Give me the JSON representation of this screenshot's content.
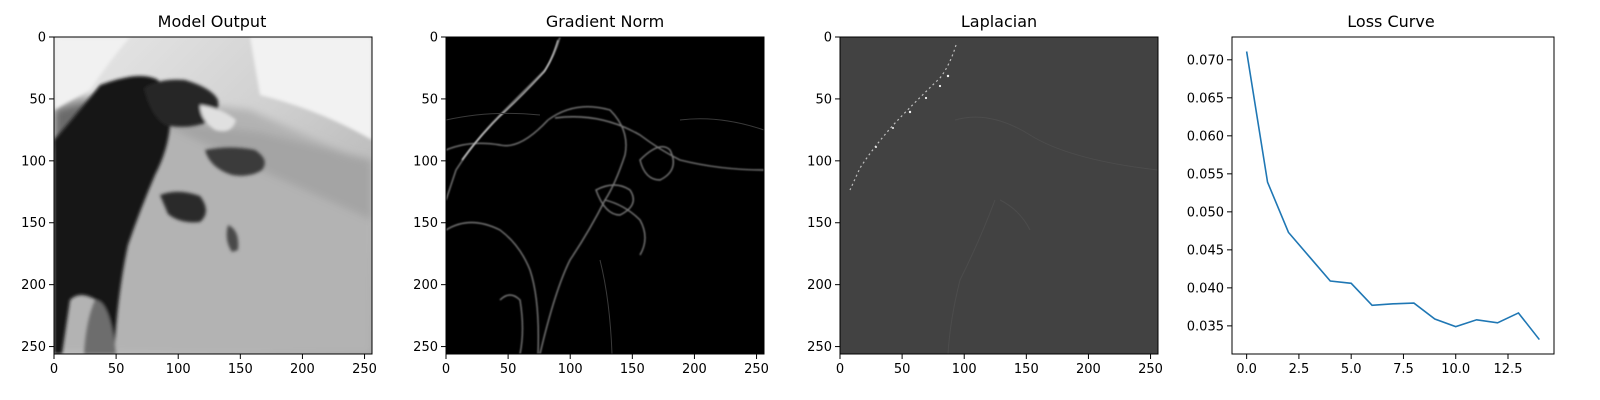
{
  "chart_data": [
    {
      "type": "heatmap",
      "title": "Model Output",
      "colormap": "gray",
      "background": "#bdbdbd",
      "xlim": [
        0,
        256
      ],
      "ylim": [
        256,
        0
      ],
      "xticks": [
        0,
        50,
        100,
        150,
        200,
        250
      ],
      "yticks": [
        0,
        50,
        100,
        150,
        200,
        250
      ]
    },
    {
      "type": "heatmap",
      "title": "Gradient Norm",
      "colormap": "gray",
      "background": "#000000",
      "xlim": [
        0,
        256
      ],
      "ylim": [
        256,
        0
      ],
      "xticks": [
        0,
        50,
        100,
        150,
        200,
        250
      ],
      "yticks": [
        0,
        50,
        100,
        150,
        200,
        250
      ]
    },
    {
      "type": "heatmap",
      "title": "Laplacian",
      "colormap": "gray",
      "background": "#424242",
      "xlim": [
        0,
        256
      ],
      "ylim": [
        256,
        0
      ],
      "xticks": [
        0,
        50,
        100,
        150,
        200,
        250
      ],
      "yticks": [
        0,
        50,
        100,
        150,
        200,
        250
      ]
    },
    {
      "type": "line",
      "title": "Loss Curve",
      "color": "#1f77b4",
      "x": [
        0,
        1,
        2,
        3,
        4,
        5,
        6,
        7,
        8,
        9,
        10,
        11,
        12,
        13,
        14
      ],
      "values": [
        0.0711,
        0.0539,
        0.0473,
        0.0441,
        0.0409,
        0.0406,
        0.0377,
        0.0379,
        0.038,
        0.0359,
        0.0349,
        0.0358,
        0.0354,
        0.0367,
        0.0332
      ],
      "xlim": [
        -0.7,
        14.7
      ],
      "ylim": [
        0.0313,
        0.073
      ],
      "xticks": [
        "0.0",
        "2.5",
        "5.0",
        "7.5",
        "10.0",
        "12.5"
      ],
      "xtick_values": [
        0,
        2.5,
        5,
        7.5,
        10,
        12.5
      ],
      "yticks": [
        "0.035",
        "0.040",
        "0.045",
        "0.050",
        "0.055",
        "0.060",
        "0.065",
        "0.070"
      ],
      "ytick_values": [
        0.035,
        0.04,
        0.045,
        0.05,
        0.055,
        0.06,
        0.065,
        0.07
      ]
    }
  ]
}
